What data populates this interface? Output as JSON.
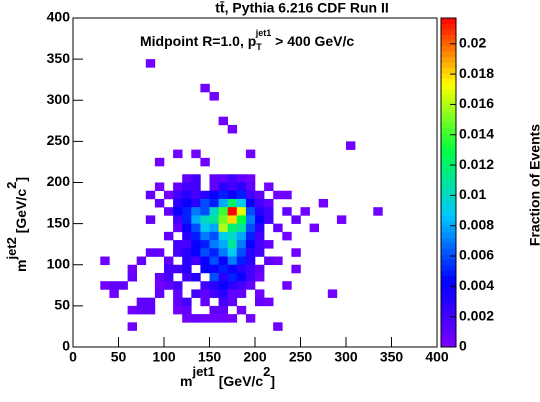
{
  "chart_data": {
    "type": "heatmap",
    "title": "tt̄, Pythia 6.216  CDF Run II",
    "annotation": [
      "Midpoint R=1.0, p",
      "T",
      "jet1",
      " > 400 GeV/c"
    ],
    "x_label": [
      "m",
      "jet1",
      " [GeV/c",
      "2",
      "]"
    ],
    "y_label": [
      "m",
      "jet2",
      " [GeV/c",
      "2",
      "]"
    ],
    "colorbar_label": "Fraction of Events",
    "xlim": [
      0,
      400
    ],
    "xticks": [
      0,
      50,
      100,
      150,
      200,
      250,
      300,
      350,
      400
    ],
    "ylim": [
      0,
      400
    ],
    "yticks": [
      0,
      50,
      100,
      150,
      200,
      250,
      300,
      350,
      400
    ],
    "zlim": [
      0,
      0.0217
    ],
    "zticks": [
      0,
      0.002,
      0.004,
      0.006,
      0.008,
      0.01,
      0.012,
      0.014,
      0.016,
      0.018,
      0.02
    ],
    "bin_width": 10,
    "palette": [
      "#7f00ff",
      "#0000ff",
      "#00c8ff",
      "#00ff40",
      "#ffff00",
      "#ff0000"
    ],
    "cells": [
      [
        80,
        340,
        0.0005
      ],
      [
        140,
        310,
        0.0005
      ],
      [
        150,
        300,
        0.0005
      ],
      [
        160,
        270,
        0.0005
      ],
      [
        170,
        260,
        0.0005
      ],
      [
        300,
        240,
        0.0005
      ],
      [
        110,
        230,
        0.0005
      ],
      [
        90,
        220,
        0.0005
      ],
      [
        130,
        230,
        0.0005
      ],
      [
        190,
        230,
        0.0005
      ],
      [
        140,
        220,
        0.0005
      ],
      [
        120,
        200,
        0.001
      ],
      [
        130,
        200,
        0.002
      ],
      [
        150,
        200,
        0.001
      ],
      [
        160,
        200,
        0.001
      ],
      [
        170,
        200,
        0.002
      ],
      [
        180,
        200,
        0.001
      ],
      [
        190,
        200,
        0.0005
      ],
      [
        90,
        190,
        0.0005
      ],
      [
        110,
        190,
        0.001
      ],
      [
        120,
        190,
        0.002
      ],
      [
        130,
        190,
        0.002
      ],
      [
        150,
        190,
        0.001
      ],
      [
        160,
        190,
        0.003
      ],
      [
        170,
        190,
        0.002
      ],
      [
        180,
        190,
        0.003
      ],
      [
        190,
        190,
        0.001
      ],
      [
        210,
        190,
        0.0005
      ],
      [
        80,
        180,
        0.001
      ],
      [
        100,
        180,
        0.0005
      ],
      [
        110,
        180,
        0.002
      ],
      [
        120,
        180,
        0.003
      ],
      [
        130,
        180,
        0.002
      ],
      [
        140,
        180,
        0.003
      ],
      [
        150,
        180,
        0.004
      ],
      [
        160,
        180,
        0.005
      ],
      [
        170,
        180,
        0.004
      ],
      [
        180,
        180,
        0.005
      ],
      [
        190,
        180,
        0.002
      ],
      [
        200,
        180,
        0.001
      ],
      [
        220,
        180,
        0.0005
      ],
      [
        230,
        180,
        0.0005
      ],
      [
        90,
        170,
        0.001
      ],
      [
        110,
        170,
        0.003
      ],
      [
        120,
        170,
        0.004
      ],
      [
        130,
        170,
        0.003
      ],
      [
        140,
        170,
        0.006
      ],
      [
        150,
        170,
        0.005
      ],
      [
        160,
        170,
        0.008
      ],
      [
        170,
        170,
        0.012
      ],
      [
        180,
        170,
        0.009
      ],
      [
        190,
        170,
        0.004
      ],
      [
        200,
        170,
        0.002
      ],
      [
        210,
        170,
        0.001
      ],
      [
        270,
        170,
        0.0005
      ],
      [
        100,
        160,
        0.001
      ],
      [
        110,
        160,
        0.004
      ],
      [
        120,
        160,
        0.005
      ],
      [
        130,
        160,
        0.007
      ],
      [
        140,
        160,
        0.006
      ],
      [
        150,
        160,
        0.01
      ],
      [
        160,
        160,
        0.014
      ],
      [
        170,
        160,
        0.022
      ],
      [
        180,
        160,
        0.017
      ],
      [
        190,
        160,
        0.006
      ],
      [
        200,
        160,
        0.003
      ],
      [
        210,
        160,
        0.002
      ],
      [
        230,
        160,
        0.001
      ],
      [
        250,
        160,
        0.0005
      ],
      [
        330,
        160,
        0.0005
      ],
      [
        80,
        150,
        0.001
      ],
      [
        110,
        150,
        0.002
      ],
      [
        120,
        150,
        0.005
      ],
      [
        130,
        150,
        0.008
      ],
      [
        140,
        150,
        0.01
      ],
      [
        150,
        150,
        0.011
      ],
      [
        160,
        150,
        0.015
      ],
      [
        170,
        150,
        0.018
      ],
      [
        180,
        150,
        0.013
      ],
      [
        190,
        150,
        0.007
      ],
      [
        200,
        150,
        0.004
      ],
      [
        210,
        150,
        0.002
      ],
      [
        240,
        150,
        0.001
      ],
      [
        290,
        150,
        0.0005
      ],
      [
        110,
        140,
        0.001
      ],
      [
        120,
        140,
        0.004
      ],
      [
        130,
        140,
        0.006
      ],
      [
        140,
        140,
        0.009
      ],
      [
        150,
        140,
        0.008
      ],
      [
        160,
        140,
        0.016
      ],
      [
        170,
        140,
        0.012
      ],
      [
        180,
        140,
        0.011
      ],
      [
        190,
        140,
        0.006
      ],
      [
        200,
        140,
        0.003
      ],
      [
        220,
        140,
        0.001
      ],
      [
        260,
        140,
        0.0005
      ],
      [
        100,
        130,
        0.001
      ],
      [
        120,
        130,
        0.003
      ],
      [
        130,
        130,
        0.005
      ],
      [
        140,
        130,
        0.007
      ],
      [
        150,
        130,
        0.006
      ],
      [
        160,
        130,
        0.009
      ],
      [
        170,
        130,
        0.01
      ],
      [
        180,
        130,
        0.008
      ],
      [
        190,
        130,
        0.005
      ],
      [
        200,
        130,
        0.002
      ],
      [
        230,
        130,
        0.0005
      ],
      [
        110,
        120,
        0.002
      ],
      [
        120,
        120,
        0.002
      ],
      [
        130,
        120,
        0.004
      ],
      [
        140,
        120,
        0.005
      ],
      [
        150,
        120,
        0.007
      ],
      [
        160,
        120,
        0.008
      ],
      [
        170,
        120,
        0.011
      ],
      [
        180,
        120,
        0.007
      ],
      [
        190,
        120,
        0.004
      ],
      [
        200,
        120,
        0.002
      ],
      [
        210,
        120,
        0.001
      ],
      [
        80,
        110,
        0.001
      ],
      [
        90,
        110,
        0.001
      ],
      [
        110,
        110,
        0.002
      ],
      [
        120,
        110,
        0.003
      ],
      [
        130,
        110,
        0.004
      ],
      [
        140,
        110,
        0.006
      ],
      [
        150,
        110,
        0.005
      ],
      [
        160,
        110,
        0.007
      ],
      [
        170,
        110,
        0.009
      ],
      [
        180,
        110,
        0.006
      ],
      [
        190,
        110,
        0.003
      ],
      [
        200,
        110,
        0.002
      ],
      [
        240,
        110,
        0.0005
      ],
      [
        30,
        100,
        0.0005
      ],
      [
        70,
        100,
        0.001
      ],
      [
        100,
        100,
        0.001
      ],
      [
        120,
        100,
        0.003
      ],
      [
        130,
        100,
        0.002
      ],
      [
        140,
        100,
        0.004
      ],
      [
        150,
        100,
        0.006
      ],
      [
        160,
        100,
        0.004
      ],
      [
        170,
        100,
        0.007
      ],
      [
        180,
        100,
        0.005
      ],
      [
        190,
        100,
        0.003
      ],
      [
        210,
        100,
        0.001
      ],
      [
        220,
        100,
        0.0005
      ],
      [
        60,
        90,
        0.0005
      ],
      [
        100,
        90,
        0.002
      ],
      [
        110,
        90,
        0.002
      ],
      [
        120,
        90,
        0.003
      ],
      [
        140,
        90,
        0.004
      ],
      [
        150,
        90,
        0.004
      ],
      [
        160,
        90,
        0.005
      ],
      [
        170,
        90,
        0.004
      ],
      [
        180,
        90,
        0.003
      ],
      [
        190,
        90,
        0.002
      ],
      [
        200,
        90,
        0.001
      ],
      [
        240,
        90,
        0.0005
      ],
      [
        60,
        80,
        0.001
      ],
      [
        90,
        80,
        0.001
      ],
      [
        100,
        80,
        0.002
      ],
      [
        120,
        80,
        0.002
      ],
      [
        130,
        80,
        0.003
      ],
      [
        150,
        80,
        0.006
      ],
      [
        160,
        80,
        0.003
      ],
      [
        170,
        80,
        0.005
      ],
      [
        180,
        80,
        0.004
      ],
      [
        190,
        80,
        0.002
      ],
      [
        200,
        80,
        0.0005
      ],
      [
        30,
        70,
        0.0005
      ],
      [
        40,
        70,
        0.001
      ],
      [
        50,
        70,
        0.001
      ],
      [
        90,
        70,
        0.0005
      ],
      [
        100,
        70,
        0.001
      ],
      [
        110,
        70,
        0.002
      ],
      [
        140,
        70,
        0.002
      ],
      [
        150,
        70,
        0.003
      ],
      [
        160,
        70,
        0.004
      ],
      [
        170,
        70,
        0.003
      ],
      [
        180,
        70,
        0.002
      ],
      [
        190,
        70,
        0.001
      ],
      [
        230,
        70,
        0.0005
      ],
      [
        40,
        60,
        0.0005
      ],
      [
        90,
        60,
        0.001
      ],
      [
        110,
        60,
        0.001
      ],
      [
        130,
        60,
        0.002
      ],
      [
        140,
        60,
        0.001
      ],
      [
        150,
        60,
        0.002
      ],
      [
        160,
        60,
        0.003
      ],
      [
        170,
        60,
        0.001
      ],
      [
        180,
        60,
        0.001
      ],
      [
        200,
        60,
        0.0005
      ],
      [
        280,
        60,
        0.0005
      ],
      [
        70,
        50,
        0.001
      ],
      [
        80,
        50,
        0.001
      ],
      [
        110,
        50,
        0.001
      ],
      [
        120,
        50,
        0.002
      ],
      [
        140,
        50,
        0.001
      ],
      [
        160,
        50,
        0.002
      ],
      [
        170,
        50,
        0.001
      ],
      [
        200,
        50,
        0.001
      ],
      [
        210,
        50,
        0.0005
      ],
      [
        60,
        40,
        0.0005
      ],
      [
        70,
        40,
        0.001
      ],
      [
        80,
        40,
        0.001
      ],
      [
        110,
        40,
        0.0005
      ],
      [
        120,
        40,
        0.001
      ],
      [
        150,
        40,
        0.001
      ],
      [
        160,
        40,
        0.001
      ],
      [
        180,
        40,
        0.0005
      ],
      [
        120,
        30,
        0.0005
      ],
      [
        130,
        30,
        0.001
      ],
      [
        140,
        30,
        0.0005
      ],
      [
        150,
        30,
        0.0005
      ],
      [
        160,
        30,
        0.0005
      ],
      [
        170,
        30,
        0.0005
      ],
      [
        190,
        30,
        0.0005
      ],
      [
        60,
        20,
        0.0005
      ],
      [
        220,
        20,
        0.0005
      ]
    ]
  }
}
